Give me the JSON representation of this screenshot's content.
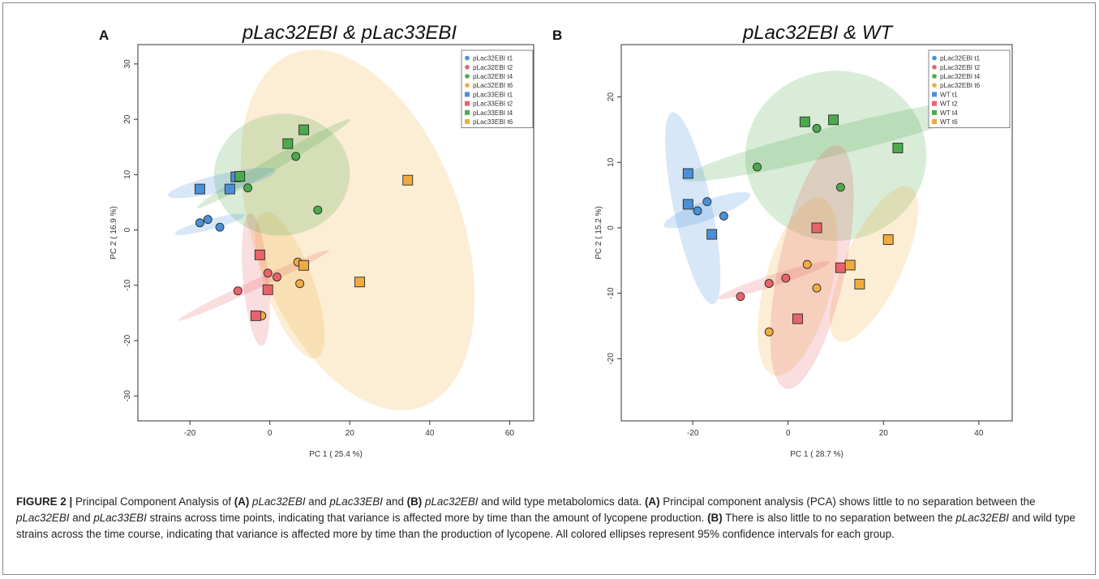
{
  "chart_data": [
    {
      "type": "scatter",
      "panel": "A",
      "title": "pLac32EBI & pLac33EBI",
      "xlabel": "PC 1 ( 25.4 %)",
      "ylabel": "PC 2 ( 16.9 %)",
      "xlim": [
        -33,
        66
      ],
      "ylim": [
        -34.5,
        33.5
      ],
      "xticks": [
        -20,
        0,
        20,
        40,
        60
      ],
      "yticks": [
        -30,
        -20,
        -10,
        0,
        10,
        20,
        30
      ],
      "grid": false,
      "legend_position": "top-right",
      "series": [
        {
          "name": "pLac32EBI t1",
          "color": "#4a90d9",
          "marker": "circle",
          "points": [
            [
              -17.5,
              1.3
            ],
            [
              -15.5,
              1.9
            ],
            [
              -12.5,
              0.5
            ]
          ]
        },
        {
          "name": "pLac32EBI t2",
          "color": "#e8646a",
          "marker": "circle",
          "points": [
            [
              -8,
              -11
            ],
            [
              -0.5,
              -7.8
            ],
            [
              1.8,
              -8.5
            ]
          ]
        },
        {
          "name": "pLac32EBI t4",
          "color": "#4caa4c",
          "marker": "circle",
          "points": [
            [
              -5.5,
              7.6
            ],
            [
              6.5,
              13.3
            ],
            [
              12,
              3.6
            ]
          ]
        },
        {
          "name": "pLac32EBI t6",
          "color": "#f0ab3e",
          "marker": "circle",
          "points": [
            [
              7,
              -5.8
            ],
            [
              7.5,
              -9.7
            ],
            [
              -2,
              -15.5
            ]
          ]
        },
        {
          "name": "pLac33EBI t1",
          "color": "#4a90d9",
          "marker": "square",
          "points": [
            [
              -17.5,
              7.4
            ],
            [
              -10,
              7.4
            ],
            [
              -8.5,
              9.6
            ]
          ]
        },
        {
          "name": "pLac33EBI t2",
          "color": "#e8646a",
          "marker": "square",
          "points": [
            [
              -2.5,
              -4.5
            ],
            [
              -0.5,
              -10.8
            ],
            [
              -3.5,
              -15.5
            ]
          ]
        },
        {
          "name": "pLac33EBI t4",
          "color": "#4caa4c",
          "marker": "square",
          "points": [
            [
              -7.5,
              9.7
            ],
            [
              4.5,
              15.6
            ],
            [
              8.5,
              18.1
            ]
          ]
        },
        {
          "name": "pLac33EBI t6",
          "color": "#f0ab3e",
          "marker": "square",
          "points": [
            [
              8.5,
              -6.4
            ],
            [
              22.5,
              -9.4
            ],
            [
              34.5,
              9
            ]
          ]
        }
      ],
      "ellipses": [
        {
          "group": "pLac33EBI t6",
          "color": "#f0ab3e",
          "cx": 22,
          "cy": 0,
          "rx": 26,
          "ry": 34,
          "rotation": -20
        },
        {
          "group": "pLac32EBI t6",
          "color": "#f0ab3e",
          "cx": 5,
          "cy": -10,
          "rx": 6,
          "ry": 14,
          "rotation": -20
        },
        {
          "group": "pLac32EBI t2",
          "color": "#e8646a",
          "cx": -3.5,
          "cy": -9,
          "rx": 3.2,
          "ry": 12,
          "rotation": -5
        },
        {
          "group": "pLac33EBI t2",
          "color": "#e8646a",
          "cx": -4,
          "cy": -10,
          "rx": 1.2,
          "ry": 15,
          "rotation": 65
        },
        {
          "group": "pLac32EBI t4",
          "color": "#4caa4c",
          "cx": 3,
          "cy": 10,
          "rx": 17,
          "ry": 11,
          "rotation": -5
        },
        {
          "group": "pLac33EBI t4",
          "color": "#4caa4c",
          "cx": 1,
          "cy": 12,
          "rx": 1.5,
          "ry": 16,
          "rotation": 60
        },
        {
          "group": "pLac33EBI t1",
          "color": "#4a90d9",
          "cx": -12,
          "cy": 8.5,
          "rx": 2.2,
          "ry": 10,
          "rotation": 77
        },
        {
          "group": "pLac32EBI t1",
          "color": "#4a90d9",
          "cx": -15,
          "cy": 1,
          "rx": 1.3,
          "ry": 6.5,
          "rotation": 75
        }
      ]
    },
    {
      "type": "scatter",
      "panel": "B",
      "title": "pLac32EBI & WT",
      "xlabel": "PC 1 ( 28.7 %)",
      "ylabel": "PC 2 ( 15.2 %)",
      "xlim": [
        -35,
        47
      ],
      "ylim": [
        -29.5,
        28
      ],
      "xticks": [
        -20,
        0,
        20,
        40
      ],
      "yticks": [
        -20,
        -10,
        0,
        10,
        20
      ],
      "grid": false,
      "legend_position": "top-right",
      "series": [
        {
          "name": "pLac32EBI t1",
          "color": "#4a90d9",
          "marker": "circle",
          "points": [
            [
              -17,
              4
            ],
            [
              -19,
              2.6
            ],
            [
              -13.5,
              1.8
            ]
          ]
        },
        {
          "name": "pLac32EBI t2",
          "color": "#e8646a",
          "marker": "circle",
          "points": [
            [
              -10,
              -10.5
            ],
            [
              -4,
              -8.5
            ],
            [
              -0.5,
              -7.7
            ]
          ]
        },
        {
          "name": "pLac32EBI t4",
          "color": "#4caa4c",
          "marker": "circle",
          "points": [
            [
              -6.5,
              9.3
            ],
            [
              6,
              15.2
            ],
            [
              11,
              6.2
            ]
          ]
        },
        {
          "name": "pLac32EBI t6",
          "color": "#f0ab3e",
          "marker": "circle",
          "points": [
            [
              4,
              -5.6
            ],
            [
              6,
              -9.2
            ],
            [
              -4,
              -15.9
            ]
          ]
        },
        {
          "name": "WT t1",
          "color": "#4a90d9",
          "marker": "square",
          "points": [
            [
              -21,
              8.3
            ],
            [
              -21,
              3.6
            ],
            [
              -16,
              -1
            ]
          ]
        },
        {
          "name": "WT t2",
          "color": "#e8646a",
          "marker": "square",
          "points": [
            [
              6,
              0
            ],
            [
              11,
              -6.1
            ],
            [
              2,
              -13.9
            ]
          ]
        },
        {
          "name": "WT t4",
          "color": "#4caa4c",
          "marker": "square",
          "points": [
            [
              3.5,
              16.2
            ],
            [
              9.5,
              16.5
            ],
            [
              23,
              12.2
            ]
          ]
        },
        {
          "name": "WT t6",
          "color": "#f0ab3e",
          "marker": "square",
          "points": [
            [
              21,
              -1.8
            ],
            [
              13,
              -5.7
            ],
            [
              15,
              -8.6
            ]
          ]
        }
      ],
      "ellipses": [
        {
          "group": "pLac32EBI t4",
          "color": "#4caa4c",
          "cx": 10,
          "cy": 11,
          "rx": 19,
          "ry": 13,
          "rotation": -3
        },
        {
          "group": "WT t4",
          "color": "#4caa4c",
          "cx": 11,
          "cy": 13.5,
          "rx": 3,
          "ry": 25,
          "rotation": 76
        },
        {
          "group": "WT t6",
          "color": "#f0ab3e",
          "cx": 18,
          "cy": -5.5,
          "rx": 6,
          "ry": 13,
          "rotation": 25
        },
        {
          "group": "pLac32EBI t6",
          "color": "#f0ab3e",
          "cx": 2,
          "cy": -9,
          "rx": 7,
          "ry": 14,
          "rotation": 15
        },
        {
          "group": "WT t2",
          "color": "#e8646a",
          "cx": 5,
          "cy": -6,
          "rx": 7,
          "ry": 19,
          "rotation": 12
        },
        {
          "group": "pLac32EBI t2",
          "color": "#e8646a",
          "cx": -3,
          "cy": -8,
          "rx": 1.2,
          "ry": 9,
          "rotation": 72
        },
        {
          "group": "WT t1",
          "color": "#4a90d9",
          "cx": -20,
          "cy": 3,
          "rx": 4,
          "ry": 15,
          "rotation": -12
        },
        {
          "group": "pLac32EBI t1",
          "color": "#4a90d9",
          "cx": -17,
          "cy": 2.7,
          "rx": 2,
          "ry": 7,
          "rotation": 70
        }
      ]
    }
  ],
  "caption": {
    "figure_label": "FIGURE 2 |",
    "intro_1": " Principal Component Analysis of ",
    "A1": "(A)",
    "s1": " ",
    "strain32": "pLac32EBI",
    "and1": " and ",
    "strain33": "pLac33EBI",
    "and2": " and ",
    "B1": "(B)",
    "s2": " ",
    "strain32b": "pLac32EBI",
    "rest1": " and wild type metabolomics data. ",
    "A2": "(A)",
    "line2": " Principal component analysis (PCA) shows little to no separation between the ",
    "strain32c": "pLac32EBI",
    "and3": " and ",
    "strain33b": "pLac33EBI",
    "rest2": " strains across time points, indicating that variance is affected more by time than the amount of lycopene production. ",
    "B2": "(B)",
    "rest3": " There is also little to no separation between the ",
    "strain32d": "pLac32EBI",
    "rest4": " and wild type strains across the time course, indicating that variance is affected more by time than the production of lycopene. All colored ellipses represent 95% confidence intervals for each group."
  }
}
